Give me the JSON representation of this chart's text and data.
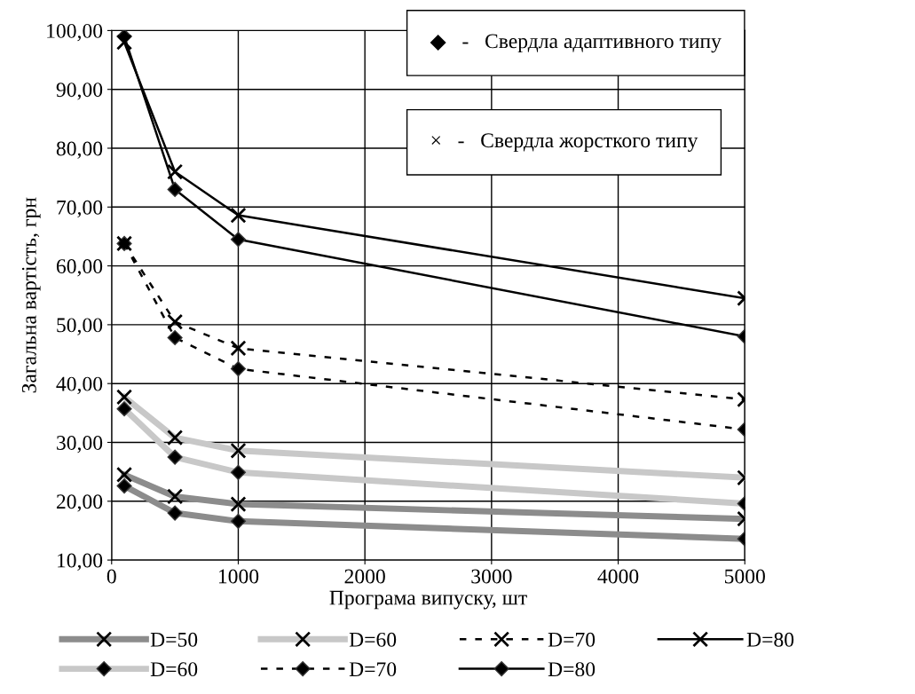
{
  "chart_data": {
    "type": "line",
    "xlabel": "Програма випуску, шт",
    "ylabel": "Загальна вартість, грн",
    "x": [
      100,
      500,
      1000,
      5000
    ],
    "xlim": [
      0,
      5000
    ],
    "xticks": [
      0,
      1000,
      2000,
      3000,
      4000,
      5000
    ],
    "ylim": [
      10,
      100
    ],
    "yticks": [
      {
        "value": 10,
        "label": "10,00"
      },
      {
        "value": 20,
        "label": "20,00"
      },
      {
        "value": 30,
        "label": "30,00"
      },
      {
        "value": 40,
        "label": "40,00"
      },
      {
        "value": 50,
        "label": "50,00"
      },
      {
        "value": 60,
        "label": "60,00"
      },
      {
        "value": 70,
        "label": "70,00"
      },
      {
        "value": 80,
        "label": "80,00"
      },
      {
        "value": 90,
        "label": "90,00"
      },
      {
        "value": 100,
        "label": "100,00"
      }
    ],
    "grid": true,
    "legend": "bottom",
    "annotations": [
      "◆   -   Свердла адаптивного типу",
      "×   -   Свердла жорсткого типу"
    ],
    "series": [
      {
        "name": "D=50",
        "color": "#8c8c8c",
        "marker": "cross",
        "line_style": "solid",
        "values": [
          24.5,
          20.8,
          19.5,
          17.0
        ]
      },
      {
        "name": "D=60",
        "color": "#c8c8c8",
        "marker": "diamond",
        "line_style": "solid",
        "values": [
          35.7,
          27.5,
          24.9,
          19.6
        ]
      },
      {
        "name": "D=60",
        "color": "#c8c8c8",
        "marker": "cross",
        "line_style": "solid",
        "values": [
          37.7,
          30.8,
          28.6,
          24.0
        ]
      },
      {
        "name": "D=70",
        "color": "#000000",
        "marker": "diamond",
        "line_style": "dashed",
        "values": [
          63.8,
          47.8,
          42.5,
          32.2
        ]
      },
      {
        "name": "D=70",
        "color": "#000000",
        "marker": "cross",
        "line_style": "dashed",
        "values": [
          63.8,
          50.5,
          46.0,
          37.3
        ]
      },
      {
        "name": "D=80",
        "color": "#000000",
        "marker": "diamond",
        "line_style": "solid",
        "values": [
          99.0,
          73.0,
          64.5,
          48.0
        ]
      },
      {
        "name": "D=80",
        "color": "#000000",
        "marker": "cross",
        "line_style": "solid",
        "values": [
          98.0,
          76.0,
          68.6,
          54.5
        ]
      },
      {
        "color": "#8c8c8c",
        "marker": "diamond",
        "line_style": "solid",
        "values": [
          22.6,
          18.0,
          16.6,
          13.6
        ]
      }
    ]
  }
}
